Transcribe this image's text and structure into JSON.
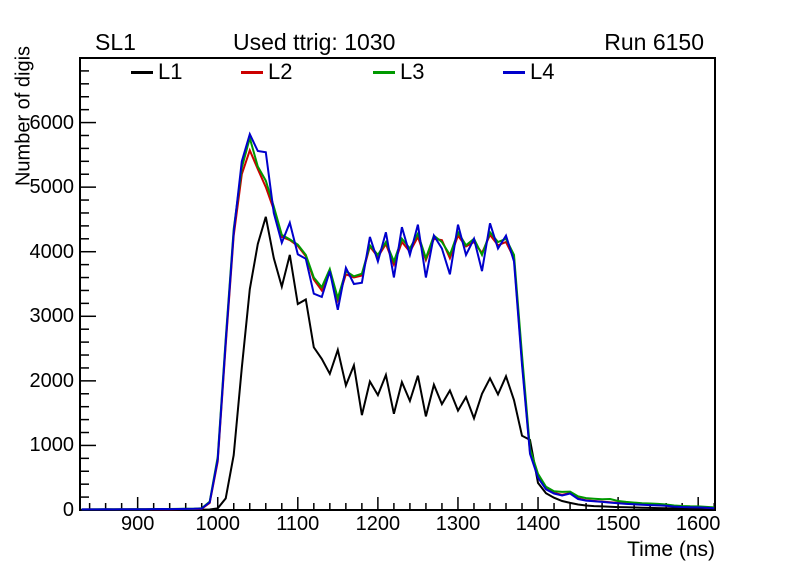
{
  "header": {
    "left": "SL1",
    "center": "Used ttrig: 1030",
    "right": "Run 6150"
  },
  "legend": {
    "items": [
      {
        "label": "L1",
        "color": "#000000"
      },
      {
        "label": "L2",
        "color": "#cc0000"
      },
      {
        "label": "L3",
        "color": "#009900"
      },
      {
        "label": "L4",
        "color": "#0000cc"
      }
    ]
  },
  "axes": {
    "y_title": "Number of digis",
    "x_title": "Time (ns)"
  },
  "chart_data": {
    "type": "line",
    "title": "Used ttrig: 1030",
    "subtitle_left": "SL1",
    "subtitle_right": "Run 6150",
    "xlabel": "Time (ns)",
    "ylabel": "Number of digis",
    "xlim": [
      828,
      1621
    ],
    "ylim": [
      0,
      7000
    ],
    "x_major_ticks": [
      900,
      1000,
      1100,
      1200,
      1300,
      1400,
      1500,
      1600
    ],
    "x_minor_step": 20,
    "y_major_ticks": [
      0,
      1000,
      2000,
      3000,
      4000,
      5000,
      6000
    ],
    "y_minor_step": 200,
    "grid": false,
    "legend_position": "top-inside",
    "frame_color": "#000000",
    "x": [
      830,
      840,
      850,
      860,
      870,
      880,
      890,
      900,
      910,
      920,
      930,
      940,
      950,
      960,
      970,
      980,
      990,
      1000,
      1010,
      1020,
      1030,
      1040,
      1050,
      1060,
      1070,
      1080,
      1090,
      1100,
      1110,
      1120,
      1130,
      1140,
      1150,
      1160,
      1170,
      1180,
      1190,
      1200,
      1210,
      1220,
      1230,
      1240,
      1250,
      1260,
      1270,
      1280,
      1290,
      1300,
      1310,
      1320,
      1330,
      1340,
      1350,
      1360,
      1370,
      1380,
      1390,
      1400,
      1410,
      1420,
      1430,
      1440,
      1450,
      1460,
      1470,
      1480,
      1490,
      1500,
      1510,
      1520,
      1530,
      1540,
      1550,
      1560,
      1570,
      1580,
      1590,
      1600,
      1610,
      1620
    ],
    "series": [
      {
        "name": "L1",
        "color": "#000000",
        "values": [
          3,
          2,
          3,
          2,
          3,
          3,
          2,
          3,
          3,
          4,
          3,
          4,
          4,
          5,
          5,
          6,
          8,
          25,
          180,
          850,
          2200,
          3420,
          4120,
          4540,
          3900,
          3460,
          3950,
          3190,
          3260,
          2520,
          2340,
          2110,
          2480,
          1930,
          2240,
          1470,
          1990,
          1780,
          2090,
          1490,
          1980,
          1690,
          2080,
          1450,
          1940,
          1640,
          1850,
          1540,
          1750,
          1420,
          1800,
          2040,
          1790,
          2070,
          1700,
          1150,
          1085,
          420,
          260,
          190,
          140,
          110,
          85,
          70,
          60,
          55,
          50,
          45,
          42,
          38,
          35,
          32,
          30,
          28,
          26,
          25,
          24,
          23,
          22,
          20
        ]
      },
      {
        "name": "L2",
        "color": "#cc0000",
        "values": [
          8,
          9,
          8,
          10,
          9,
          10,
          11,
          10,
          12,
          11,
          12,
          13,
          14,
          15,
          16,
          20,
          110,
          750,
          2550,
          4250,
          5200,
          5570,
          5280,
          5000,
          4650,
          4230,
          4180,
          4090,
          3930,
          3570,
          3400,
          3680,
          3250,
          3650,
          3600,
          3630,
          4080,
          3920,
          4120,
          3800,
          4150,
          4000,
          4230,
          3870,
          4200,
          4180,
          3900,
          4250,
          4080,
          4150,
          3980,
          4260,
          4100,
          4150,
          3900,
          2300,
          900,
          520,
          330,
          265,
          235,
          265,
          180,
          150,
          140,
          130,
          120,
          110,
          100,
          92,
          86,
          80,
          75,
          68,
          55,
          50,
          45,
          42,
          36,
          30
        ]
      },
      {
        "name": "L3",
        "color": "#009900",
        "values": [
          10,
          10,
          11,
          12,
          11,
          13,
          12,
          14,
          13,
          15,
          16,
          15,
          17,
          18,
          20,
          26,
          130,
          820,
          2650,
          4350,
          5300,
          5760,
          5320,
          5100,
          4700,
          4260,
          4190,
          4110,
          3950,
          3600,
          3450,
          3730,
          3280,
          3700,
          3620,
          3660,
          4100,
          3950,
          4150,
          3850,
          4200,
          4050,
          4280,
          3900,
          4250,
          4150,
          3950,
          4300,
          4100,
          4200,
          3950,
          4300,
          4150,
          4200,
          3950,
          2400,
          950,
          560,
          360,
          290,
          280,
          285,
          210,
          185,
          175,
          165,
          170,
          140,
          125,
          115,
          105,
          100,
          95,
          85,
          70,
          62,
          58,
          55,
          48,
          40
        ]
      },
      {
        "name": "L4",
        "color": "#0000cc",
        "values": [
          9,
          9,
          10,
          11,
          10,
          12,
          11,
          13,
          12,
          14,
          15,
          14,
          16,
          17,
          19,
          24,
          120,
          780,
          2600,
          4300,
          5400,
          5820,
          5560,
          5540,
          4600,
          4140,
          4450,
          3960,
          3890,
          3350,
          3300,
          3700,
          3100,
          3750,
          3500,
          3520,
          4230,
          3850,
          4300,
          3600,
          4380,
          3950,
          4420,
          3600,
          4250,
          4050,
          3650,
          4420,
          3950,
          4200,
          3700,
          4440,
          4050,
          4250,
          3850,
          2250,
          870,
          500,
          320,
          255,
          225,
          255,
          170,
          145,
          135,
          125,
          115,
          105,
          95,
          88,
          82,
          76,
          72,
          65,
          52,
          47,
          43,
          40,
          34,
          28
        ]
      }
    ]
  }
}
